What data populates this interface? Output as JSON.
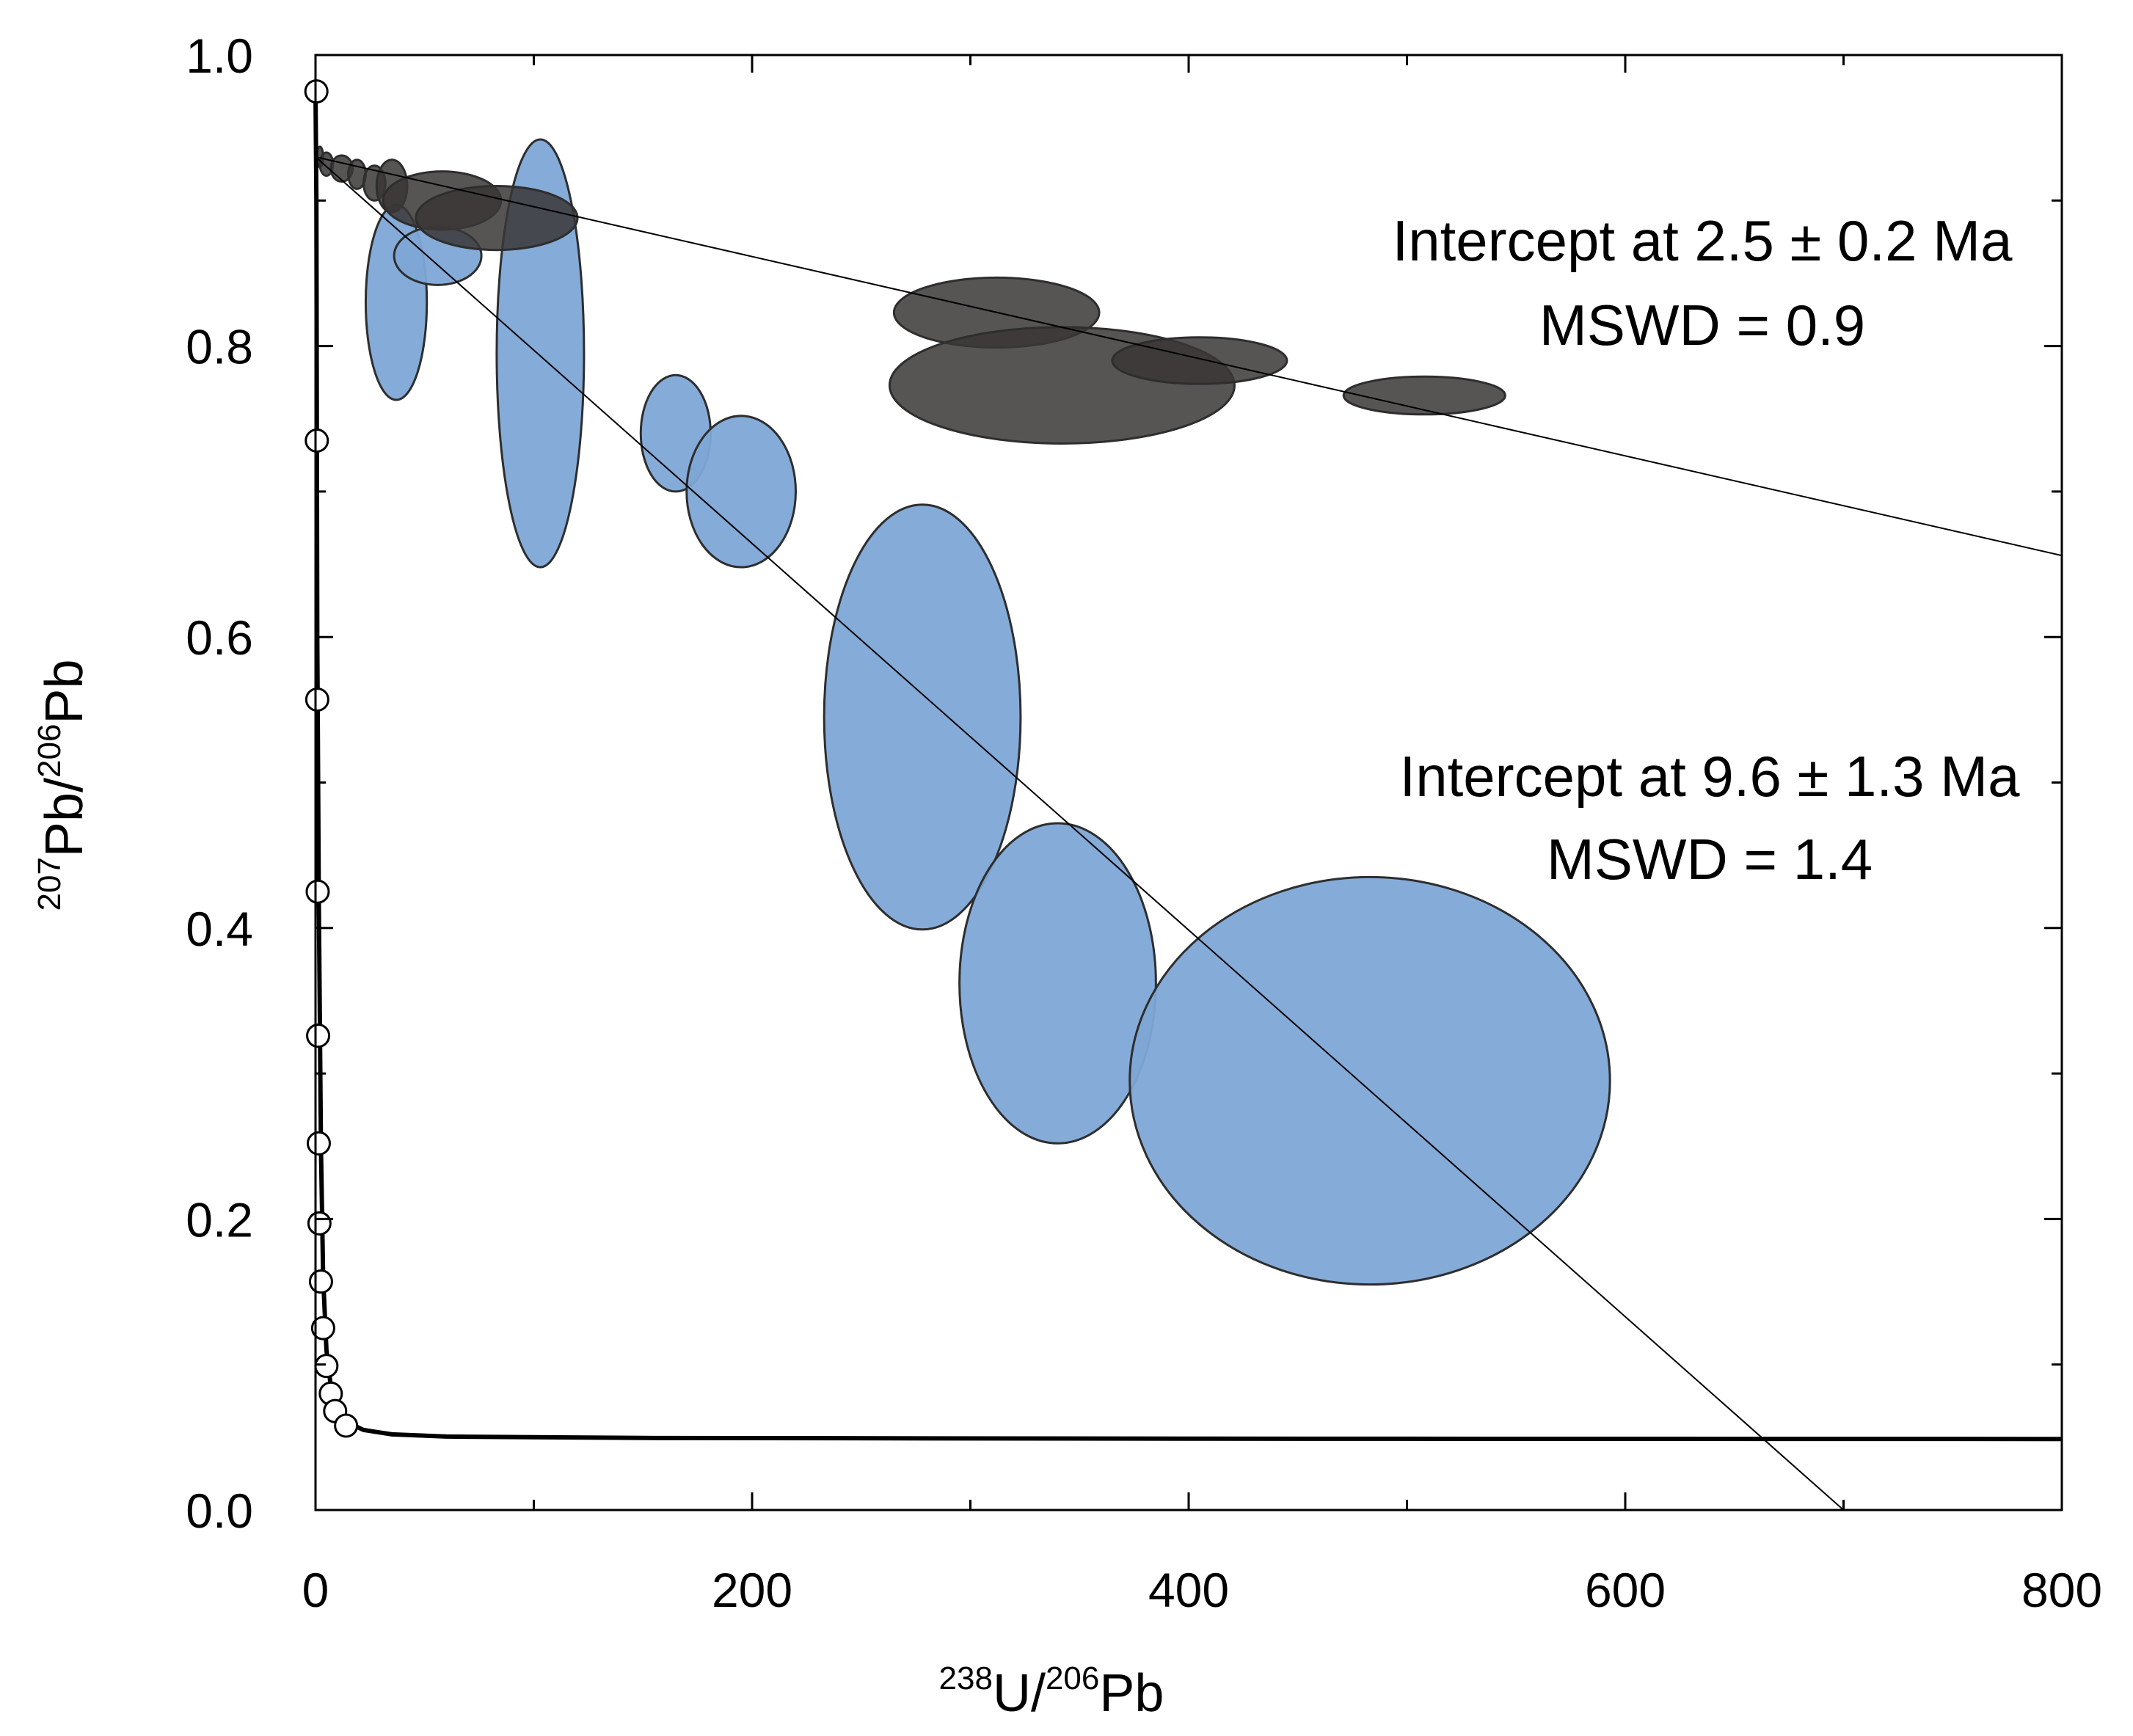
{
  "chart_data": {
    "type": "scatter",
    "title": "",
    "xlabel": {
      "sup1": "238",
      "base1": "U/",
      "sup2": "206",
      "base2": "Pb"
    },
    "ylabel": {
      "sup1": "207",
      "base1": "Pb/",
      "sup2": "206",
      "base2": "Pb"
    },
    "xlim": [
      0,
      800
    ],
    "ylim": [
      0.0,
      1.0
    ],
    "x_ticks": [
      0,
      200,
      400,
      600,
      800
    ],
    "x_tick_labels": [
      "0",
      "200",
      "400",
      "600",
      "800"
    ],
    "x_minor_ticks": [
      100,
      300,
      500,
      700
    ],
    "y_ticks": [
      0.0,
      0.2,
      0.4,
      0.6,
      0.8,
      1.0
    ],
    "y_tick_labels": [
      "0.0",
      "0.2",
      "0.4",
      "0.6",
      "0.8",
      "1.0"
    ],
    "y_minor_ticks": [
      0.1,
      0.3,
      0.5,
      0.7,
      0.9
    ],
    "grid": false,
    "concordia": {
      "curve": [
        [
          0,
          0.975
        ],
        [
          0.4,
          0.9
        ],
        [
          0.8,
          0.6
        ],
        [
          1.5,
          0.42
        ],
        [
          2.5,
          0.25
        ],
        [
          3.5,
          0.16
        ],
        [
          5,
          0.11
        ],
        [
          7,
          0.085
        ],
        [
          10,
          0.07
        ],
        [
          15,
          0.06
        ],
        [
          22,
          0.055
        ],
        [
          35,
          0.052
        ],
        [
          60,
          0.0505
        ],
        [
          150,
          0.0495
        ],
        [
          400,
          0.049
        ],
        [
          800,
          0.0488
        ]
      ],
      "markers": [
        [
          0.4,
          0.975
        ],
        [
          0.6,
          0.735
        ],
        [
          0.8,
          0.557
        ],
        [
          1.0,
          0.425
        ],
        [
          1.2,
          0.326
        ],
        [
          1.5,
          0.252
        ],
        [
          1.8,
          0.197
        ],
        [
          2.5,
          0.157
        ],
        [
          3.5,
          0.125
        ],
        [
          5.0,
          0.099
        ],
        [
          7.0,
          0.08
        ],
        [
          9.0,
          0.068
        ],
        [
          14,
          0.058
        ]
      ]
    },
    "series": [
      {
        "name": "dark ellipses",
        "color": "#3a3636",
        "fill_opacity": 0.85,
        "ellipses": [
          {
            "x": 2,
            "y": 0.93,
            "sx": 1.5,
            "sy": 0.007
          },
          {
            "x": 5,
            "y": 0.925,
            "sx": 3,
            "sy": 0.008
          },
          {
            "x": 12,
            "y": 0.922,
            "sx": 5,
            "sy": 0.009
          },
          {
            "x": 19,
            "y": 0.918,
            "sx": 4,
            "sy": 0.01
          },
          {
            "x": 27,
            "y": 0.912,
            "sx": 5,
            "sy": 0.012
          },
          {
            "x": 35,
            "y": 0.91,
            "sx": 7,
            "sy": 0.018
          },
          {
            "x": 58,
            "y": 0.9,
            "sx": 27,
            "sy": 0.02
          },
          {
            "x": 83,
            "y": 0.888,
            "sx": 37,
            "sy": 0.022
          },
          {
            "x": 312,
            "y": 0.823,
            "sx": 47,
            "sy": 0.024
          },
          {
            "x": 342,
            "y": 0.773,
            "sx": 79,
            "sy": 0.04
          },
          {
            "x": 405,
            "y": 0.79,
            "sx": 40,
            "sy": 0.016
          },
          {
            "x": 508,
            "y": 0.766,
            "sx": 37,
            "sy": 0.013
          }
        ]
      },
      {
        "name": "blue ellipses",
        "color": "#7ea6d6",
        "fill_opacity": 0.95,
        "ellipses": [
          {
            "x": 37,
            "y": 0.83,
            "sx": 14,
            "sy": 0.067
          },
          {
            "x": 56,
            "y": 0.862,
            "sx": 20,
            "sy": 0.02
          },
          {
            "x": 103,
            "y": 0.795,
            "sx": 20,
            "sy": 0.147
          },
          {
            "x": 165,
            "y": 0.74,
            "sx": 16,
            "sy": 0.04
          },
          {
            "x": 195,
            "y": 0.7,
            "sx": 25,
            "sy": 0.052
          },
          {
            "x": 278,
            "y": 0.545,
            "sx": 45,
            "sy": 0.146
          },
          {
            "x": 340,
            "y": 0.362,
            "sx": 45,
            "sy": 0.11
          },
          {
            "x": 483,
            "y": 0.295,
            "sx": 110,
            "sy": 0.14
          }
        ]
      }
    ],
    "regression_lines": [
      {
        "name": "upper line",
        "points": [
          [
            0,
            0.93
          ],
          [
            800,
            0.656
          ]
        ]
      },
      {
        "name": "lower line",
        "points": [
          [
            0,
            0.93
          ],
          [
            700,
            0.0
          ]
        ]
      }
    ],
    "annotations": [
      {
        "id": "upper_intercept",
        "text": "Intercept at 2.5 ± 0.2 Ma"
      },
      {
        "id": "upper_mswd",
        "text": "MSWD = 0.9"
      },
      {
        "id": "lower_intercept",
        "text": "Intercept at 9.6 ± 1.3 Ma"
      },
      {
        "id": "lower_mswd",
        "text": "MSWD = 1.4"
      }
    ]
  }
}
